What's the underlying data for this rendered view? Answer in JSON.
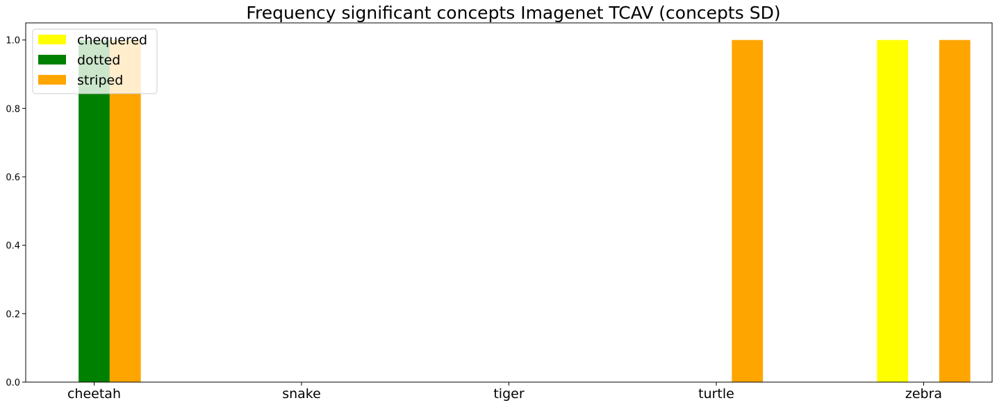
{
  "chart_data": {
    "type": "bar",
    "title": "Frequency significant concepts Imagenet TCAV (concepts SD)",
    "xlabel": "",
    "ylabel": "",
    "categories": [
      "cheetah",
      "snake",
      "tiger",
      "turtle",
      "zebra"
    ],
    "ylim": [
      0,
      1.05
    ],
    "yticks": [
      "0.0",
      "0.2",
      "0.4",
      "0.6",
      "0.8",
      "1.0"
    ],
    "grid": false,
    "legend_position": "top-left",
    "series": [
      {
        "name": "chequered",
        "color": "#ffff00",
        "values": [
          0,
          0,
          0,
          0,
          1
        ]
      },
      {
        "name": "dotted",
        "color": "#008000",
        "values": [
          1,
          0,
          0,
          0,
          0
        ]
      },
      {
        "name": "striped",
        "color": "#ffa500",
        "values": [
          1,
          0,
          0,
          1,
          1
        ]
      }
    ]
  }
}
